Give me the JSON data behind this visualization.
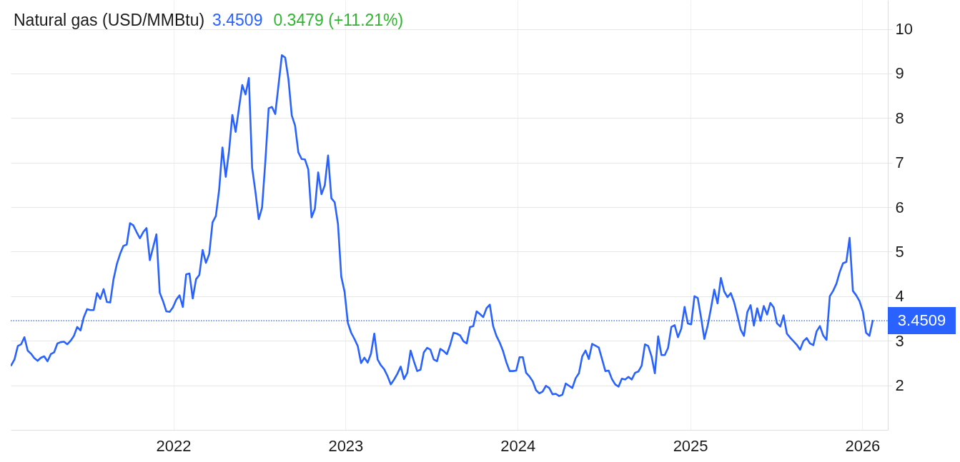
{
  "chart_data": {
    "type": "line",
    "title": "Natural gas (USD/MMBtu)",
    "annotations": [
      "3.4509",
      "0.3479 (+11.21%)"
    ],
    "x": [
      "2021-01-22",
      "2021-01-29",
      "2021-02-05",
      "2021-02-12",
      "2021-02-19",
      "2021-02-26",
      "2021-03-05",
      "2021-03-12",
      "2021-03-19",
      "2021-03-26",
      "2021-04-02",
      "2021-04-09",
      "2021-04-16",
      "2021-04-23",
      "2021-04-30",
      "2021-05-07",
      "2021-05-14",
      "2021-05-21",
      "2021-05-28",
      "2021-06-04",
      "2021-06-11",
      "2021-06-18",
      "2021-06-25",
      "2021-07-02",
      "2021-07-09",
      "2021-07-16",
      "2021-07-23",
      "2021-07-30",
      "2021-08-06",
      "2021-08-13",
      "2021-08-20",
      "2021-08-27",
      "2021-09-03",
      "2021-09-10",
      "2021-09-17",
      "2021-09-24",
      "2021-10-01",
      "2021-10-08",
      "2021-10-15",
      "2021-10-22",
      "2021-10-29",
      "2021-11-05",
      "2021-11-12",
      "2021-11-19",
      "2021-11-26",
      "2021-12-03",
      "2021-12-10",
      "2021-12-17",
      "2021-12-24",
      "2021-12-31",
      "2022-01-07",
      "2022-01-14",
      "2022-01-21",
      "2022-01-28",
      "2022-02-04",
      "2022-02-11",
      "2022-02-18",
      "2022-02-25",
      "2022-03-04",
      "2022-03-11",
      "2022-03-18",
      "2022-03-25",
      "2022-04-01",
      "2022-04-08",
      "2022-04-15",
      "2022-04-22",
      "2022-04-29",
      "2022-05-06",
      "2022-05-13",
      "2022-05-20",
      "2022-05-27",
      "2022-06-03",
      "2022-06-10",
      "2022-06-17",
      "2022-06-24",
      "2022-07-01",
      "2022-07-08",
      "2022-07-15",
      "2022-07-22",
      "2022-07-29",
      "2022-08-05",
      "2022-08-12",
      "2022-08-19",
      "2022-08-26",
      "2022-09-02",
      "2022-09-09",
      "2022-09-16",
      "2022-09-23",
      "2022-09-30",
      "2022-10-07",
      "2022-10-14",
      "2022-10-21",
      "2022-10-28",
      "2022-11-04",
      "2022-11-11",
      "2022-11-18",
      "2022-11-25",
      "2022-12-02",
      "2022-12-09",
      "2022-12-16",
      "2022-12-23",
      "2022-12-30",
      "2023-01-06",
      "2023-01-13",
      "2023-01-20",
      "2023-01-27",
      "2023-02-03",
      "2023-02-10",
      "2023-02-17",
      "2023-02-24",
      "2023-03-03",
      "2023-03-10",
      "2023-03-17",
      "2023-03-24",
      "2023-03-31",
      "2023-04-07",
      "2023-04-14",
      "2023-04-21",
      "2023-04-28",
      "2023-05-05",
      "2023-05-12",
      "2023-05-19",
      "2023-05-26",
      "2023-06-02",
      "2023-06-09",
      "2023-06-16",
      "2023-06-23",
      "2023-06-30",
      "2023-07-07",
      "2023-07-14",
      "2023-07-21",
      "2023-07-28",
      "2023-08-04",
      "2023-08-11",
      "2023-08-18",
      "2023-08-25",
      "2023-09-01",
      "2023-09-08",
      "2023-09-15",
      "2023-09-22",
      "2023-09-29",
      "2023-10-06",
      "2023-10-13",
      "2023-10-20",
      "2023-10-27",
      "2023-11-03",
      "2023-11-10",
      "2023-11-17",
      "2023-11-24",
      "2023-12-01",
      "2023-12-08",
      "2023-12-15",
      "2023-12-22",
      "2023-12-29",
      "2024-01-05",
      "2024-01-12",
      "2024-01-19",
      "2024-01-26",
      "2024-02-02",
      "2024-02-09",
      "2024-02-16",
      "2024-02-23",
      "2024-03-01",
      "2024-03-08",
      "2024-03-15",
      "2024-03-22",
      "2024-03-29",
      "2024-04-05",
      "2024-04-12",
      "2024-04-19",
      "2024-04-26",
      "2024-05-03",
      "2024-05-10",
      "2024-05-17",
      "2024-05-24",
      "2024-05-31",
      "2024-06-07",
      "2024-06-14",
      "2024-06-21",
      "2024-06-28",
      "2024-07-05",
      "2024-07-12",
      "2024-07-19",
      "2024-07-26",
      "2024-08-02",
      "2024-08-09",
      "2024-08-16",
      "2024-08-23",
      "2024-08-30",
      "2024-09-06",
      "2024-09-13",
      "2024-09-20",
      "2024-09-27",
      "2024-10-04",
      "2024-10-11",
      "2024-10-18",
      "2024-10-25",
      "2024-11-01",
      "2024-11-08",
      "2024-11-15",
      "2024-11-22",
      "2024-11-29",
      "2024-12-06",
      "2024-12-13",
      "2024-12-20",
      "2024-12-27",
      "2025-01-03",
      "2025-01-10",
      "2025-01-17",
      "2025-01-24",
      "2025-01-31",
      "2025-02-07",
      "2025-02-14",
      "2025-02-21",
      "2025-02-28",
      "2025-03-07",
      "2025-03-14",
      "2025-03-21",
      "2025-03-28",
      "2025-04-04",
      "2025-04-11",
      "2025-04-18",
      "2025-04-25",
      "2025-05-02",
      "2025-05-09",
      "2025-05-16",
      "2025-05-23",
      "2025-05-30",
      "2025-06-06",
      "2025-06-13",
      "2025-06-20",
      "2025-06-27",
      "2025-07-04",
      "2025-07-11",
      "2025-07-18",
      "2025-07-25",
      "2025-08-01",
      "2025-08-08",
      "2025-08-15",
      "2025-08-22",
      "2025-08-29",
      "2025-09-05",
      "2025-09-12",
      "2025-09-19",
      "2025-09-26",
      "2025-10-03",
      "2025-10-10",
      "2025-10-17",
      "2025-10-24",
      "2025-10-31",
      "2025-11-07",
      "2025-11-14",
      "2025-11-21",
      "2025-11-28",
      "2025-12-05",
      "2025-12-12",
      "2025-12-19",
      "2025-12-26",
      "2026-01-02",
      "2026-01-09",
      "2026-01-16",
      "2026-01-23"
    ],
    "series": [
      {
        "color": "#2962ff",
        "values": [
          2.45,
          2.58,
          2.88,
          2.92,
          3.08,
          2.78,
          2.71,
          2.61,
          2.55,
          2.62,
          2.65,
          2.54,
          2.7,
          2.74,
          2.94,
          2.97,
          2.98,
          2.92,
          3.0,
          3.11,
          3.31,
          3.23,
          3.53,
          3.71,
          3.69,
          3.69,
          4.07,
          3.94,
          4.16,
          3.87,
          3.86,
          4.38,
          4.72,
          4.95,
          5.13,
          5.16,
          5.64,
          5.59,
          5.44,
          5.3,
          5.44,
          5.53,
          4.81,
          5.1,
          5.39,
          4.08,
          3.89,
          3.66,
          3.65,
          3.75,
          3.92,
          4.02,
          3.76,
          4.49,
          4.51,
          3.95,
          4.38,
          4.48,
          5.04,
          4.75,
          4.95,
          5.66,
          5.8,
          6.39,
          7.34,
          6.68,
          7.26,
          8.07,
          7.69,
          8.22,
          8.74,
          8.53,
          8.9,
          6.88,
          6.34,
          5.73,
          5.99,
          7.03,
          8.22,
          8.25,
          8.09,
          8.75,
          9.41,
          9.36,
          8.87,
          8.06,
          7.83,
          7.23,
          7.08,
          7.07,
          6.85,
          5.77,
          5.96,
          6.78,
          6.29,
          6.49,
          7.16,
          6.2,
          6.11,
          5.62,
          4.44,
          4.1,
          3.4,
          3.18,
          3.04,
          2.88,
          2.5,
          2.62,
          2.51,
          2.71,
          3.16,
          2.58,
          2.45,
          2.36,
          2.21,
          2.02,
          2.13,
          2.26,
          2.42,
          2.14,
          2.28,
          2.78,
          2.54,
          2.32,
          2.35,
          2.74,
          2.84,
          2.8,
          2.58,
          2.54,
          2.82,
          2.77,
          2.7,
          2.91,
          3.18,
          3.16,
          3.12,
          2.99,
          2.94,
          3.31,
          3.33,
          3.66,
          3.6,
          3.53,
          3.73,
          3.81,
          3.33,
          3.11,
          2.96,
          2.77,
          2.52,
          2.32,
          2.32,
          2.33,
          2.63,
          2.63,
          2.28,
          2.2,
          2.09,
          1.89,
          1.82,
          1.86,
          1.99,
          1.94,
          1.8,
          1.81,
          1.76,
          1.79,
          2.04,
          1.99,
          1.94,
          2.16,
          2.27,
          2.65,
          2.78,
          2.59,
          2.93,
          2.89,
          2.85,
          2.59,
          2.32,
          2.33,
          2.14,
          2.02,
          1.97,
          2.15,
          2.13,
          2.19,
          2.13,
          2.28,
          2.31,
          2.44,
          2.92,
          2.88,
          2.65,
          2.27,
          3.1,
          2.68,
          2.68,
          2.84,
          3.31,
          3.35,
          3.08,
          3.27,
          3.76,
          3.39,
          3.37,
          4.0,
          3.96,
          3.52,
          3.04,
          3.34,
          3.73,
          4.15,
          3.84,
          4.41,
          4.11,
          3.98,
          4.07,
          3.87,
          3.57,
          3.25,
          3.11,
          3.64,
          3.8,
          3.34,
          3.73,
          3.45,
          3.78,
          3.59,
          3.85,
          3.75,
          3.39,
          3.32,
          3.57,
          3.16,
          3.07,
          2.99,
          2.91,
          2.8,
          2.99,
          3.06,
          2.94,
          2.9,
          3.21,
          3.33,
          3.12,
          3.02,
          4.0,
          4.12,
          4.28,
          4.54,
          4.74,
          4.77,
          5.31,
          4.12,
          4.02,
          3.89,
          3.66,
          3.18,
          3.11,
          3.45
        ]
      }
    ],
    "xlim": [
      "2021-01-21",
      "2026-02-24"
    ],
    "xticks": [
      "2022",
      "2023",
      "2024",
      "2025",
      "2026"
    ],
    "ylim": [
      1,
      10.65
    ],
    "yticks": [
      2,
      3,
      4,
      5,
      6,
      7,
      8,
      9,
      10
    ],
    "ref_lines": [
      {
        "axis": "y",
        "value": 3.4509,
        "label": "3.4509",
        "color": "#2962ff",
        "line_style": "dotted"
      }
    ],
    "grid": true
  }
}
